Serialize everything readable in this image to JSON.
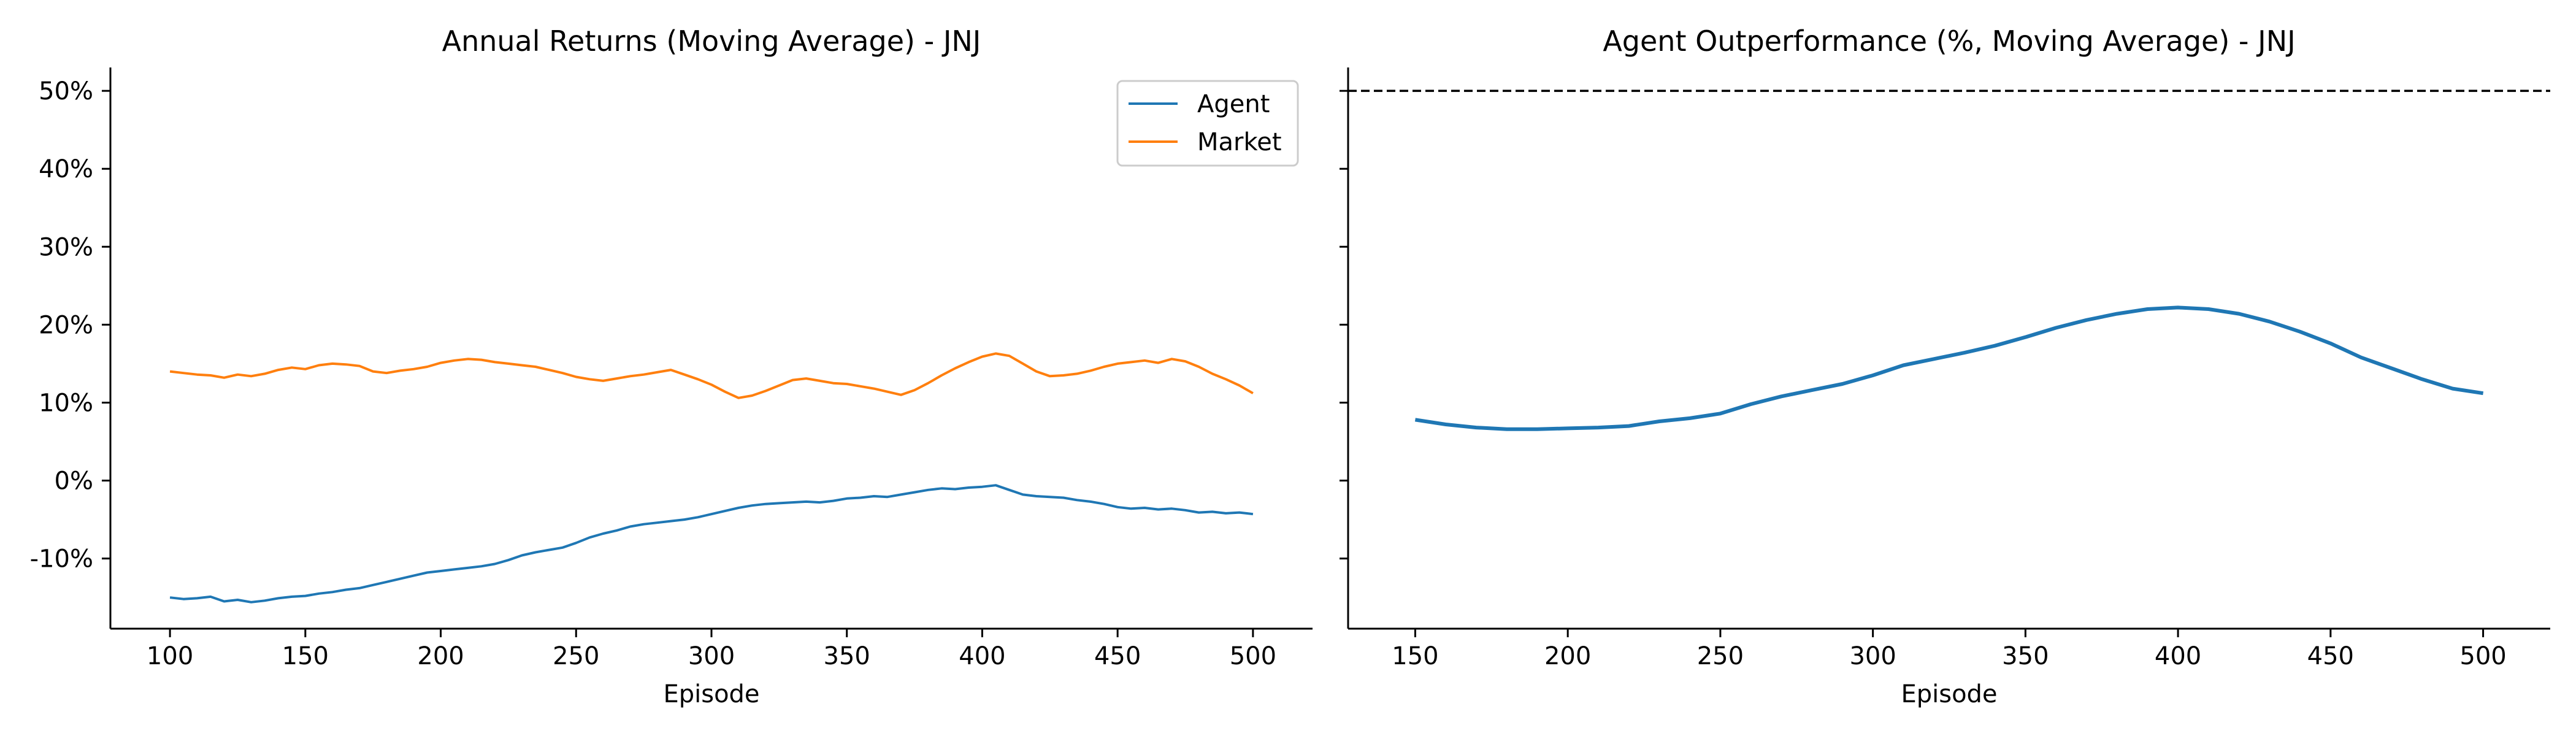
{
  "chart_data": [
    {
      "type": "line",
      "title": "Annual Returns (Moving Average) - JNJ",
      "xlabel": "Episode",
      "ylabel": "",
      "xlim": [
        78,
        522
      ],
      "ylim": [
        -19,
        53
      ],
      "xticks": [
        100,
        150,
        200,
        250,
        300,
        350,
        400,
        450,
        500
      ],
      "yticks": [
        -10,
        0,
        10,
        20,
        30,
        40,
        50
      ],
      "ytick_labels": [
        "-10%",
        "0%",
        "10%",
        "20%",
        "30%",
        "40%",
        "50%"
      ],
      "legend": "top-right",
      "grid": false,
      "series": [
        {
          "name": "Agent",
          "color": "#1f77b4",
          "x": [
            100,
            105,
            110,
            115,
            120,
            125,
            130,
            135,
            140,
            145,
            150,
            155,
            160,
            165,
            170,
            175,
            180,
            185,
            190,
            195,
            200,
            205,
            210,
            215,
            220,
            225,
            230,
            235,
            240,
            245,
            250,
            255,
            260,
            265,
            270,
            275,
            280,
            285,
            290,
            295,
            300,
            305,
            310,
            315,
            320,
            325,
            330,
            335,
            340,
            345,
            350,
            355,
            360,
            365,
            370,
            375,
            380,
            385,
            390,
            395,
            400,
            405,
            410,
            415,
            420,
            425,
            430,
            435,
            440,
            445,
            450,
            455,
            460,
            465,
            470,
            475,
            480,
            485,
            490,
            495,
            500
          ],
          "y": [
            -15.0,
            -15.2,
            -15.1,
            -14.9,
            -15.5,
            -15.3,
            -15.6,
            -15.4,
            -15.1,
            -14.9,
            -14.8,
            -14.5,
            -14.3,
            -14.0,
            -13.8,
            -13.4,
            -13.0,
            -12.6,
            -12.2,
            -11.8,
            -11.6,
            -11.4,
            -11.2,
            -11.0,
            -10.7,
            -10.2,
            -9.6,
            -9.2,
            -8.9,
            -8.6,
            -8.0,
            -7.3,
            -6.8,
            -6.4,
            -5.9,
            -5.6,
            -5.4,
            -5.2,
            -5.0,
            -4.7,
            -4.3,
            -3.9,
            -3.5,
            -3.2,
            -3.0,
            -2.9,
            -2.8,
            -2.7,
            -2.8,
            -2.6,
            -2.3,
            -2.2,
            -2.0,
            -2.1,
            -1.8,
            -1.5,
            -1.2,
            -1.0,
            -1.1,
            -0.9,
            -0.8,
            -0.6,
            -1.2,
            -1.8,
            -2.0,
            -2.1,
            -2.2,
            -2.5,
            -2.7,
            -3.0,
            -3.4,
            -3.6,
            -3.5,
            -3.7,
            -3.6,
            -3.8,
            -4.1,
            -4.0,
            -4.2,
            -4.1,
            -4.3
          ]
        },
        {
          "name": "Market",
          "color": "#ff7f0e",
          "x": [
            100,
            105,
            110,
            115,
            120,
            125,
            130,
            135,
            140,
            145,
            150,
            155,
            160,
            165,
            170,
            175,
            180,
            185,
            190,
            195,
            200,
            205,
            210,
            215,
            220,
            225,
            230,
            235,
            240,
            245,
            250,
            255,
            260,
            265,
            270,
            275,
            280,
            285,
            290,
            295,
            300,
            305,
            310,
            315,
            320,
            325,
            330,
            335,
            340,
            345,
            350,
            355,
            360,
            365,
            370,
            375,
            380,
            385,
            390,
            395,
            400,
            405,
            410,
            415,
            420,
            425,
            430,
            435,
            440,
            445,
            450,
            455,
            460,
            465,
            470,
            475,
            480,
            485,
            490,
            495,
            500
          ],
          "y": [
            14.0,
            13.8,
            13.6,
            13.5,
            13.2,
            13.6,
            13.4,
            13.7,
            14.2,
            14.5,
            14.3,
            14.8,
            15.0,
            14.9,
            14.7,
            14.0,
            13.8,
            14.1,
            14.3,
            14.6,
            15.1,
            15.4,
            15.6,
            15.5,
            15.2,
            15.0,
            14.8,
            14.6,
            14.2,
            13.8,
            13.3,
            13.0,
            12.8,
            13.1,
            13.4,
            13.6,
            13.9,
            14.2,
            13.6,
            13.0,
            12.3,
            11.4,
            10.6,
            10.9,
            11.5,
            12.2,
            12.9,
            13.1,
            12.8,
            12.5,
            12.4,
            12.1,
            11.8,
            11.4,
            11.0,
            11.6,
            12.5,
            13.5,
            14.4,
            15.2,
            15.9,
            16.3,
            16.0,
            15.0,
            14.0,
            13.4,
            13.5,
            13.7,
            14.1,
            14.6,
            15.0,
            15.2,
            15.4,
            15.1,
            15.6,
            15.3,
            14.6,
            13.7,
            13.0,
            12.2,
            11.2
          ]
        }
      ]
    },
    {
      "type": "line",
      "title": "Agent Outperformance (%, Moving Average) - JNJ",
      "xlabel": "Episode",
      "ylabel": "",
      "xlim": [
        128,
        522
      ],
      "ylim": [
        -19,
        53
      ],
      "xticks": [
        150,
        200,
        250,
        300,
        350,
        400,
        450,
        500
      ],
      "legend": "none",
      "grid": false,
      "reference_line": {
        "y": 50,
        "style": "dashed",
        "color": "#000000"
      },
      "series": [
        {
          "color": "#1f77b4",
          "x": [
            150,
            160,
            170,
            180,
            190,
            200,
            210,
            220,
            230,
            240,
            250,
            260,
            270,
            280,
            290,
            300,
            310,
            320,
            330,
            340,
            350,
            360,
            370,
            380,
            390,
            400,
            410,
            420,
            430,
            440,
            450,
            460,
            470,
            480,
            490,
            500
          ],
          "y": [
            7.8,
            7.2,
            6.8,
            6.6,
            6.6,
            6.7,
            6.8,
            7.0,
            7.6,
            8.0,
            8.6,
            9.8,
            10.8,
            11.6,
            12.4,
            13.5,
            14.8,
            15.6,
            16.4,
            17.3,
            18.4,
            19.6,
            20.6,
            21.4,
            22.0,
            22.2,
            22.0,
            21.4,
            20.4,
            19.1,
            17.6,
            15.8,
            14.4,
            13.0,
            11.8,
            11.2
          ]
        }
      ]
    }
  ]
}
